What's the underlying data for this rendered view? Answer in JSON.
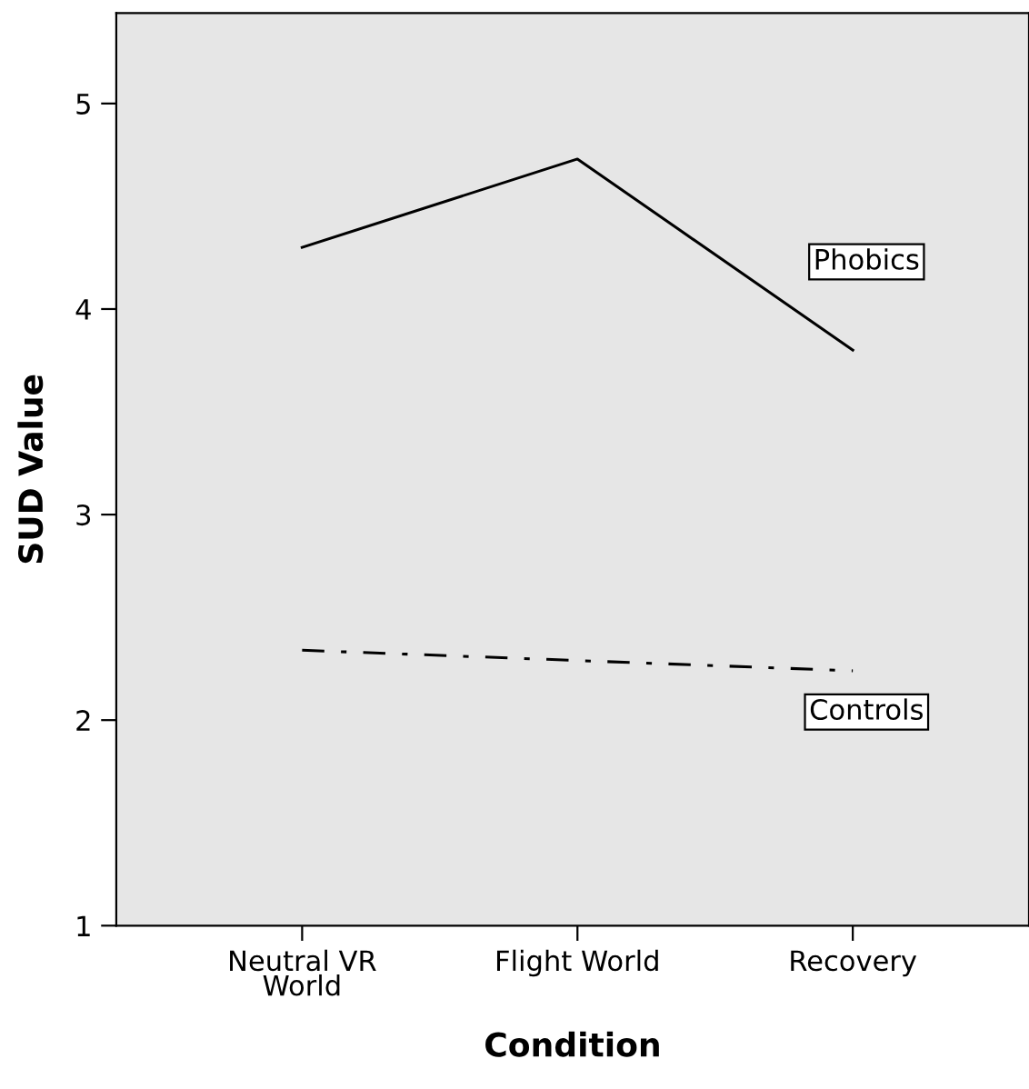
{
  "chart_data": {
    "type": "line",
    "xlabel": "Condition",
    "ylabel": "SUD Value",
    "categories": [
      "Neutral VR\nWorld",
      "Flight World",
      "Recovery"
    ],
    "series": [
      {
        "name": "Phobics",
        "color": "#000000",
        "values": [
          4.3,
          4.73,
          3.8
        ],
        "line_style": "solid"
      },
      {
        "name": "Controls",
        "color": "#000000",
        "values": [
          2.34,
          2.29,
          2.24
        ],
        "line_style": "dashdot"
      }
    ],
    "ylim": [
      1,
      5.44
    ],
    "yticks": [
      1,
      2,
      3,
      4,
      5
    ],
    "grid": false,
    "legend": false,
    "marker": "none"
  }
}
